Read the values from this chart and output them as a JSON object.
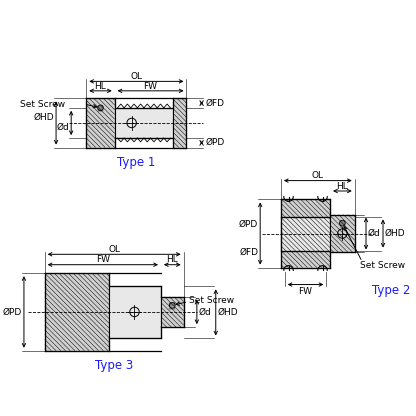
{
  "bg_color": "#ffffff",
  "line_color": "#000000",
  "type_color": "#1a1aff",
  "label_fontsize": 6.5,
  "type_fontsize": 8.5,
  "type1_label": "Type 1",
  "type2_label": "Type 2",
  "type3_label": "Type 3",
  "hatch_fc": "#d0d0d0",
  "body_fc": "#e8e8e8"
}
